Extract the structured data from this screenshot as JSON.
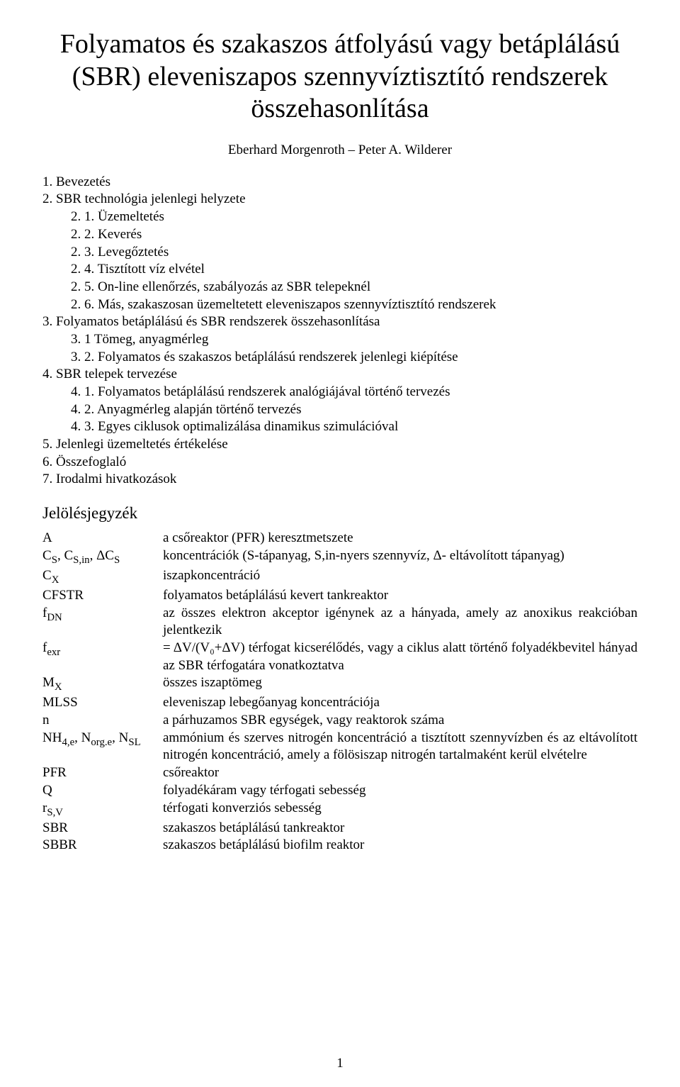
{
  "title": "Folyamatos és szakaszos átfolyású vagy betáplálású (SBR) eleveniszapos szennyvíztisztító rendszerek összehasonlítása",
  "authors": "Eberhard Morgenroth – Peter A. Wilderer",
  "toc": [
    {
      "level": 0,
      "text": "1. Bevezetés"
    },
    {
      "level": 0,
      "text": "2. SBR technológia jelenlegi helyzete"
    },
    {
      "level": 1,
      "text": "2. 1. Üzemeltetés"
    },
    {
      "level": 1,
      "text": "2. 2. Keverés"
    },
    {
      "level": 1,
      "text": "2. 3. Levegőztetés"
    },
    {
      "level": 1,
      "text": "2. 4. Tisztított víz elvétel"
    },
    {
      "level": 1,
      "text": "2. 5. On-line ellenőrzés, szabályozás az SBR telepeknél"
    },
    {
      "level": 1,
      "text": "2. 6. Más, szakaszosan üzemeltetett eleveniszapos szennyvíztisztító rendszerek"
    },
    {
      "level": 0,
      "text": "3. Folyamatos betáplálású és SBR rendszerek összehasonlítása"
    },
    {
      "level": 1,
      "text": "3. 1 Tömeg, anyagmérleg"
    },
    {
      "level": 1,
      "text": "3. 2. Folyamatos és szakaszos betáplálású rendszerek jelenlegi kiépítése"
    },
    {
      "level": 0,
      "text": "4. SBR telepek tervezése"
    },
    {
      "level": 1,
      "text": "4. 1. Folyamatos betáplálású rendszerek analógiájával történő tervezés"
    },
    {
      "level": 1,
      "text": "4. 2. Anyagmérleg alapján történő tervezés"
    },
    {
      "level": 1,
      "text": "4. 3. Egyes ciklusok optimalizálása dinamikus szimulációval"
    },
    {
      "level": 0,
      "text": "5. Jelenlegi üzemeltetés értékelése"
    },
    {
      "level": 0,
      "text": "6. Összefoglaló"
    },
    {
      "level": 0,
      "text": "7. Irodalmi hivatkozások"
    }
  ],
  "notation_heading": "Jelölésjegyzék",
  "definitions": [
    {
      "symbol_html": "A",
      "text": "a csőreaktor (PFR) keresztmetszete"
    },
    {
      "symbol_html": "C<sub>S</sub>, C<sub>S,in</sub>, ΔC<sub>S</sub>",
      "text": "koncentrációk (S-tápanyag, S,in-nyers szennyvíz, Δ- eltávolított tápanyag)"
    },
    {
      "symbol_html": "C<sub>X</sub>",
      "text": "iszapkoncentráció"
    },
    {
      "symbol_html": "CFSTR",
      "text": "folyamatos betáplálású kevert tankreaktor"
    },
    {
      "symbol_html": "f<sub>DN</sub>",
      "text": "az összes elektron akceptor igénynek az a hányada, amely az anoxikus reakcióban jelentkezik"
    },
    {
      "symbol_html": "f<sub>exr</sub>",
      "text": "= ΔV/(V₀+ΔV) térfogat kicserélődés, vagy a ciklus alatt történő folyadékbevitel hányad az SBR térfogatára vonatkoztatva"
    },
    {
      "symbol_html": "M<sub>X</sub>",
      "text": "összes iszaptömeg"
    },
    {
      "symbol_html": "MLSS",
      "text": "eleveniszap lebegőanyag koncentrációja"
    },
    {
      "symbol_html": "n",
      "text": "a párhuzamos SBR egységek, vagy reaktorok száma"
    },
    {
      "symbol_html": "NH<sub>4,e</sub>, N<sub>org.e</sub>, N<sub>SL</sub>",
      "text": "ammónium és szerves nitrogén koncentráció a tisztított szennyvízben és az eltávolított nitrogén koncentráció, amely a fölösiszap nitrogén tartalmaként kerül elvételre"
    },
    {
      "symbol_html": "PFR",
      "text": "csőreaktor"
    },
    {
      "symbol_html": "Q",
      "text": "folyadékáram vagy térfogati sebesség"
    },
    {
      "symbol_html": "r<sub>S,V</sub>",
      "text": "térfogati konverziós sebesség"
    },
    {
      "symbol_html": "SBR",
      "text": "szakaszos betáplálású tankreaktor"
    },
    {
      "symbol_html": "SBBR",
      "text": "szakaszos betáplálású biofilm reaktor"
    }
  ],
  "page_number": "1"
}
